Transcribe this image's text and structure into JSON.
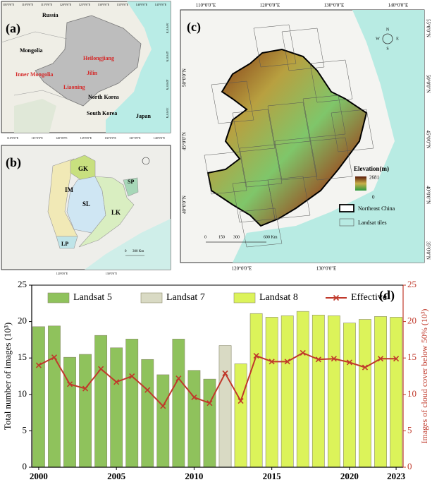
{
  "maps": {
    "a": {
      "label": "(a)",
      "places": [
        "Russia",
        "Mongolia",
        "Heilongjiang",
        "Jilin",
        "Inner Mongolia",
        "Liaoning",
        "North Korea",
        "South Korea",
        "Japan"
      ],
      "top_coords": [
        "105°0'0\"E",
        "110°0'0\"E",
        "115°0'0\"E",
        "120°0'0\"E",
        "125°0'0\"E",
        "130°0'0\"E",
        "135°0'0\"E",
        "140°0'0\"E",
        "145°0'0\"E"
      ],
      "bottom_coords": [
        "110°0'0\"E",
        "115°0'0\"E",
        "120°0'0\"E",
        "125°0'0\"E",
        "130°0'0\"E",
        "135°0'0\"E",
        "140°0'0\"E"
      ],
      "right_coords": [
        "50°0'0\"N",
        "45°0'0\"N",
        "40°0'0\"N",
        "35°0'0\"N"
      ]
    },
    "b": {
      "label": "(b)",
      "regions": [
        "GK",
        "IM",
        "SL",
        "LK",
        "SP",
        "LP"
      ],
      "scale": [
        "0",
        "300 Km"
      ],
      "bottom_coords": [
        "120°0'0\"E",
        "130°0'0\"E"
      ]
    },
    "c": {
      "label": "(c)",
      "top_coords": [
        "110°0'0\"E",
        "120°0'0\"E",
        "130°0'0\"E",
        "140°0'0\"E"
      ],
      "bottom_coords": [
        "120°0'0\"E",
        "130°0'0\"E"
      ],
      "left_coords": [
        "50°0'0\"N",
        "45°0'0\"N",
        "40°0'0\"N"
      ],
      "right_coords": [
        "55°0'0\"N",
        "50°0'0\"N",
        "45°0'0\"N",
        "40°0'0\"N",
        "35°0'0\"N"
      ],
      "compass": [
        "N",
        "S",
        "E",
        "W"
      ],
      "legend_title": "Elevation(m)",
      "legend_high": "2681",
      "legend_low": "0",
      "legend_items": [
        "Northeast China",
        "Landsat tiles"
      ],
      "scale": [
        "0",
        "150",
        "300",
        "600 Km"
      ]
    }
  },
  "chart_data": {
    "type": "bar",
    "panel_label": "(d)",
    "y_label": "Total number of images (10³)",
    "y2_label": "Images of cloud cover below 50% (10³)",
    "x": [
      2000,
      2001,
      2002,
      2003,
      2004,
      2005,
      2006,
      2007,
      2008,
      2009,
      2010,
      2011,
      2012,
      2013,
      2014,
      2015,
      2016,
      2017,
      2018,
      2019,
      2020,
      2021,
      2022,
      2023
    ],
    "xlim": [
      1999.55,
      2023.45
    ],
    "xticks": [
      2000,
      2005,
      2010,
      2015,
      2020,
      2023
    ],
    "ylim": [
      0,
      25
    ],
    "yticks": [
      0,
      5,
      10,
      15,
      20,
      25
    ],
    "y2lim": [
      0,
      25
    ],
    "y2ticks": [
      0,
      5,
      10,
      15,
      20,
      25
    ],
    "series": [
      {
        "name": "Landsat 5",
        "type": "bar",
        "color": "#8fc25c",
        "values": [
          19.3,
          19.4,
          15.1,
          15.5,
          18.1,
          16.4,
          17.6,
          14.8,
          12.7,
          17.6,
          13.3,
          12.1,
          null,
          null,
          null,
          null,
          null,
          null,
          null,
          null,
          null,
          null,
          null,
          null
        ]
      },
      {
        "name": "Landsat 7",
        "type": "bar",
        "color": "#d9dac4",
        "values": [
          null,
          null,
          null,
          null,
          null,
          null,
          null,
          null,
          null,
          null,
          null,
          null,
          16.7,
          null,
          null,
          null,
          null,
          null,
          null,
          null,
          null,
          null,
          null,
          null
        ]
      },
      {
        "name": "Landsat 8",
        "type": "bar",
        "color": "#dcf35a",
        "values": [
          null,
          null,
          null,
          null,
          null,
          null,
          null,
          null,
          null,
          null,
          null,
          null,
          null,
          14.2,
          21.1,
          20.6,
          20.8,
          21.4,
          20.9,
          20.8,
          19.8,
          20.3,
          20.7,
          20.6
        ]
      },
      {
        "name": "Effective",
        "type": "line",
        "axis": "y2",
        "color": "#c0392b",
        "values": [
          14.0,
          15.1,
          11.4,
          10.8,
          13.5,
          11.7,
          12.5,
          10.6,
          8.4,
          12.2,
          9.6,
          8.8,
          12.9,
          9.1,
          15.3,
          14.5,
          14.5,
          15.7,
          14.8,
          14.9,
          14.4,
          13.7,
          14.9,
          14.9
        ]
      }
    ]
  }
}
